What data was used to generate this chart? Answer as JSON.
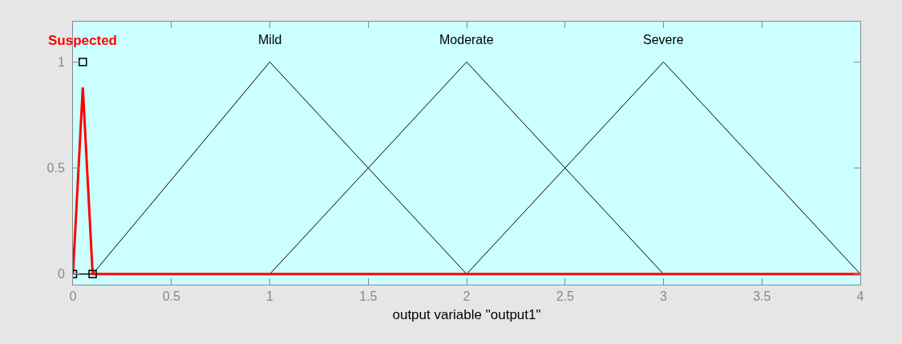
{
  "chart_data": {
    "type": "line",
    "xlabel": "output variable \"output1\"",
    "xlim": [
      0,
      4
    ],
    "xticks": [
      0,
      0.5,
      1,
      1.5,
      2,
      2.5,
      3,
      3.5,
      4
    ],
    "ylim": [
      -0.05,
      1.19
    ],
    "yticks": [
      0,
      0.5,
      1
    ],
    "grid": false,
    "legend": false,
    "marker": "none",
    "line_style": "solid",
    "series": [
      {
        "name": "Mild",
        "color": "#000000",
        "x": [
          0.1,
          1,
          2,
          4
        ],
        "values": [
          0,
          1,
          0,
          0
        ]
      },
      {
        "name": "Moderate",
        "color": "#000000",
        "x": [
          0,
          1,
          2,
          3,
          4
        ],
        "values": [
          0,
          0,
          1,
          0,
          0
        ]
      },
      {
        "name": "Severe",
        "color": "#000000",
        "x": [
          0,
          2,
          3,
          4
        ],
        "values": [
          0,
          0,
          1,
          0
        ]
      },
      {
        "name": "Suspected",
        "color": "#ff0000",
        "x": [
          0,
          0.05,
          0.1,
          4
        ],
        "values": [
          0,
          0.88,
          0,
          0
        ]
      },
      {
        "type": "scatter",
        "marker": "square",
        "color": "#000000",
        "x": [
          0,
          0.05,
          0.1
        ],
        "values": [
          0,
          1,
          0
        ]
      }
    ]
  }
}
